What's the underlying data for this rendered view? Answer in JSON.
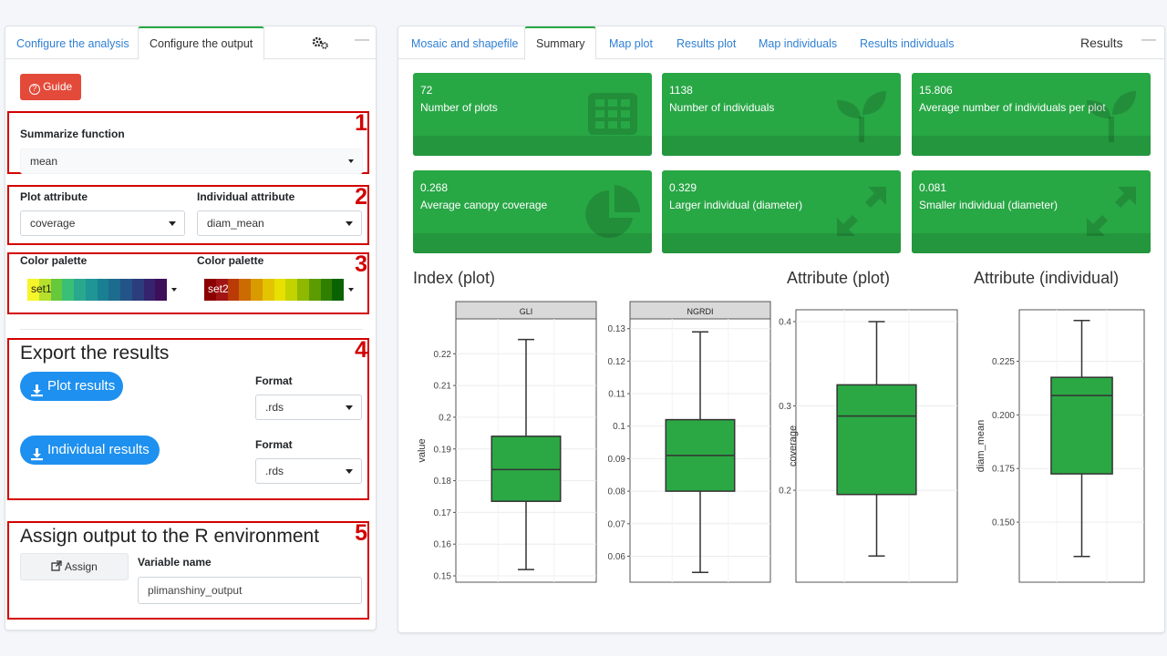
{
  "left_panel": {
    "tabs": [
      "Configure the analysis",
      "Configure the output"
    ],
    "active_tab": "Configure the output",
    "guide_label": "Guide",
    "annotation_numbers": [
      "1",
      "2",
      "3",
      "4",
      "5"
    ],
    "summarize": {
      "label": "Summarize function",
      "value": "mean"
    },
    "plot_attribute": {
      "label": "Plot attribute",
      "value": "coverage"
    },
    "individual_attribute": {
      "label": "Individual attribute",
      "value": "diam_mean"
    },
    "palette1": {
      "label": "Color palette",
      "name": "set1",
      "colors": [
        "#f5f52a",
        "#b6e02c",
        "#66c93b",
        "#3bbf76",
        "#2aa88d",
        "#1f9595",
        "#198092",
        "#1d6b8e",
        "#235487",
        "#2b3d7c",
        "#35236d",
        "#3d0e5a"
      ]
    },
    "palette2": {
      "label": "Color palette",
      "name": "set2",
      "colors": [
        "#8b0000",
        "#a21515",
        "#bb3b08",
        "#cc6b00",
        "#d99a00",
        "#e3c400",
        "#e8e000",
        "#c2d300",
        "#8fb800",
        "#5d9c00",
        "#2f7f00",
        "#0a6300"
      ]
    },
    "export": {
      "title": "Export the results",
      "plot_button": "Plot results",
      "individual_button": "Individual results",
      "format_label": "Format",
      "plot_format": ".rds",
      "individual_format": ".rds"
    },
    "assign": {
      "title": "Assign output to the R environment",
      "button": "Assign",
      "var_label": "Variable name",
      "var_value": "plimanshiny_output"
    }
  },
  "right_panel": {
    "tabs": [
      "Mosaic and shapefile",
      "Summary",
      "Map plot",
      "Results plot",
      "Map individuals",
      "Results individuals"
    ],
    "active_tab": "Summary",
    "title": "Results",
    "value_boxes": [
      {
        "value": "72",
        "label": "Number of plots",
        "icon": "grid-icon"
      },
      {
        "value": "1138",
        "label": "Number of individuals",
        "icon": "seedling-icon"
      },
      {
        "value": "15.806",
        "label": "Average number of individuals per plot",
        "icon": "seedling-icon"
      },
      {
        "value": "0.268",
        "label": "Average canopy coverage",
        "icon": "pie-icon"
      },
      {
        "value": "0.329",
        "label": "Larger individual (diameter)",
        "icon": "expand-icon"
      },
      {
        "value": "0.081",
        "label": "Smaller individual (diameter)",
        "icon": "expand-icon"
      }
    ]
  },
  "colors": {
    "green": "#28a745",
    "green_dark": "#24963e",
    "red_annotation": "#d30000",
    "blue": "#1e90ef",
    "link": "#2f7fd3",
    "box_fill": "#2ba844"
  },
  "chart_data": [
    {
      "type": "box",
      "title": "Index (plot)",
      "ylabel": "value",
      "panels": [
        {
          "facet": "GLI",
          "ylim": [
            0.148,
            0.231
          ],
          "ticks": [
            0.15,
            0.16,
            0.17,
            0.18,
            0.19,
            0.2,
            0.21,
            0.22
          ],
          "tick_labels": [
            "0.15",
            "0.16",
            "0.17",
            "0.18",
            "0.19",
            "0.2",
            "0.21",
            "0.22"
          ],
          "min": 0.152,
          "q1": 0.1735,
          "median": 0.1835,
          "q3": 0.194,
          "max": 0.2245
        },
        {
          "facet": "NGRDI",
          "ylim": [
            0.052,
            0.133
          ],
          "ticks": [
            0.06,
            0.07,
            0.08,
            0.09,
            0.1,
            0.11,
            0.12,
            0.13
          ],
          "tick_labels": [
            "0.06",
            "0.07",
            "0.08",
            "0.09",
            "0.1",
            "0.11",
            "0.12",
            "0.13"
          ],
          "min": 0.055,
          "q1": 0.08,
          "median": 0.091,
          "q3": 0.102,
          "max": 0.129
        }
      ]
    },
    {
      "type": "box",
      "title": "Attribute (plot)",
      "ylabel": "coverage",
      "panels": [
        {
          "ylim": [
            0.091,
            0.414
          ],
          "ticks": [
            0.2,
            0.3,
            0.4
          ],
          "tick_labels": [
            "0.2",
            "0.3",
            "0.4"
          ],
          "min": 0.122,
          "q1": 0.195,
          "median": 0.288,
          "q3": 0.325,
          "max": 0.4
        }
      ]
    },
    {
      "type": "box",
      "title": "Attribute (individual)",
      "ylabel": "diam_mean",
      "panels": [
        {
          "ylim": [
            0.122,
            0.249
          ],
          "ticks": [
            0.15,
            0.175,
            0.2,
            0.225
          ],
          "tick_labels": [
            "0.150",
            "0.175",
            "0.200",
            "0.225"
          ],
          "min": 0.134,
          "q1": 0.1725,
          "median": 0.209,
          "q3": 0.2175,
          "max": 0.244
        }
      ]
    }
  ]
}
